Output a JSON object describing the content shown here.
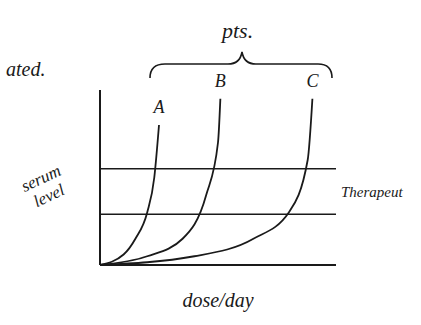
{
  "chart_data": {
    "type": "line",
    "group_label": "pts.",
    "annotations": [
      "ated."
    ],
    "x_label": "dose/day",
    "y_label": "serum level",
    "xlim": [
      0,
      10
    ],
    "ylim": [
      0,
      10
    ],
    "tick_labels": false,
    "grid": false,
    "color": "#1a1a1a",
    "reference_band": {
      "label": "Therapeut",
      "values": [
        2.9,
        5.5
      ]
    },
    "series": [
      {
        "name": "A",
        "x": [
          0,
          1,
          1.5,
          2,
          2.3,
          2.5
        ],
        "values": [
          0,
          0.6,
          1.5,
          3,
          5,
          8
        ]
      },
      {
        "name": "B",
        "x": [
          0,
          2,
          3.5,
          4.5,
          5,
          5.1
        ],
        "values": [
          0,
          0.5,
          1.5,
          4,
          7,
          9.5
        ]
      },
      {
        "name": "C",
        "x": [
          0,
          4,
          6.5,
          8,
          8.8,
          9
        ],
        "values": [
          0,
          0.5,
          1.5,
          3,
          6,
          9.5
        ]
      }
    ]
  }
}
